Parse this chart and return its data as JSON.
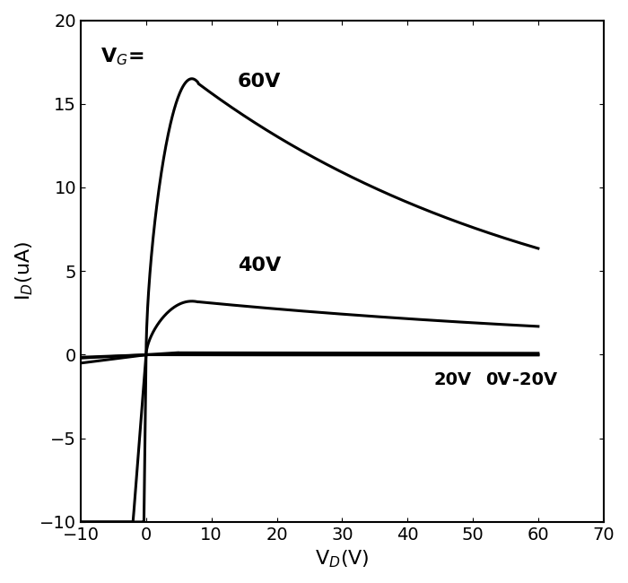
{
  "title": "",
  "xlabel": "V$_D$(V)",
  "ylabel": "I$_D$(uA)",
  "xlim": [
    -10,
    70
  ],
  "ylim": [
    -10,
    20
  ],
  "xticks": [
    -10,
    0,
    10,
    20,
    30,
    40,
    50,
    60,
    70
  ],
  "yticks": [
    -10,
    -5,
    0,
    5,
    10,
    15,
    20
  ],
  "annotation_vg": "V$_G$=",
  "label_60v": "60V",
  "label_40v": "40V",
  "label_20v": "20V",
  "label_0v": "0V",
  "label_m20v": "-20V",
  "line_color": "#000000",
  "bg_color": "#ffffff",
  "line_width": 2.2
}
